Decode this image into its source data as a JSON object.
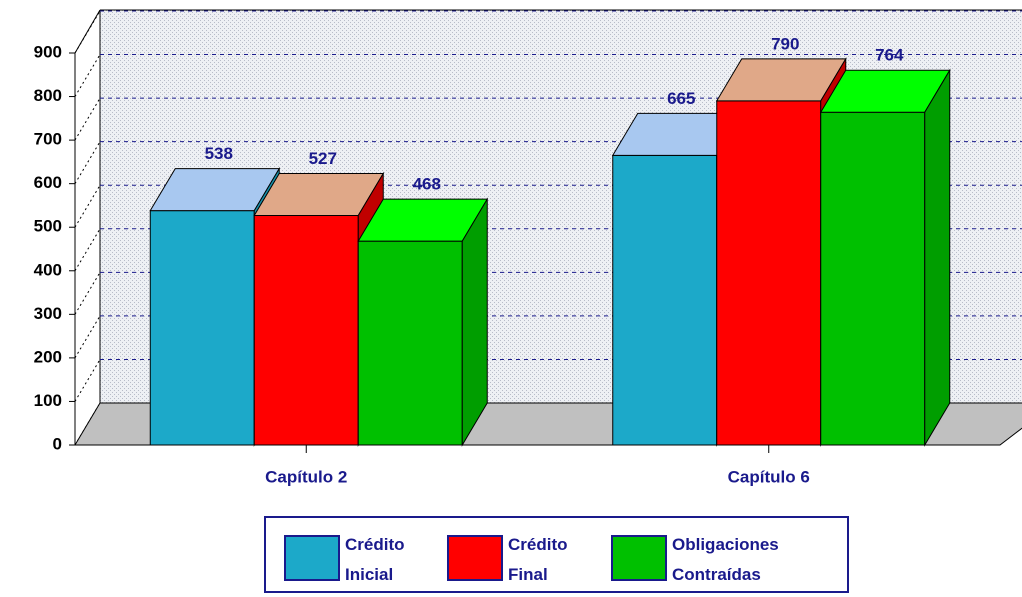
{
  "chart_data": {
    "type": "bar3d",
    "categories": [
      "Capítulo 2",
      "Capítulo 6"
    ],
    "series": [
      {
        "name": "Crédito Inicial",
        "color": "#1ca9c9",
        "top_color": "#a8c8f0",
        "side_color": "#1890aa",
        "values": [
          538,
          665
        ]
      },
      {
        "name": "Crédito Final",
        "color": "#ff0000",
        "top_color": "#e0a888",
        "side_color": "#c00000",
        "values": [
          527,
          790
        ]
      },
      {
        "name": "Obligaciones Contraídas",
        "color": "#00c000",
        "top_color": "#00ff00",
        "side_color": "#009e00",
        "values": [
          468,
          764
        ]
      }
    ],
    "ylim": [
      0,
      900
    ],
    "yticks": [
      0,
      100,
      200,
      300,
      400,
      500,
      600,
      700,
      800,
      900
    ],
    "grid": true
  }
}
